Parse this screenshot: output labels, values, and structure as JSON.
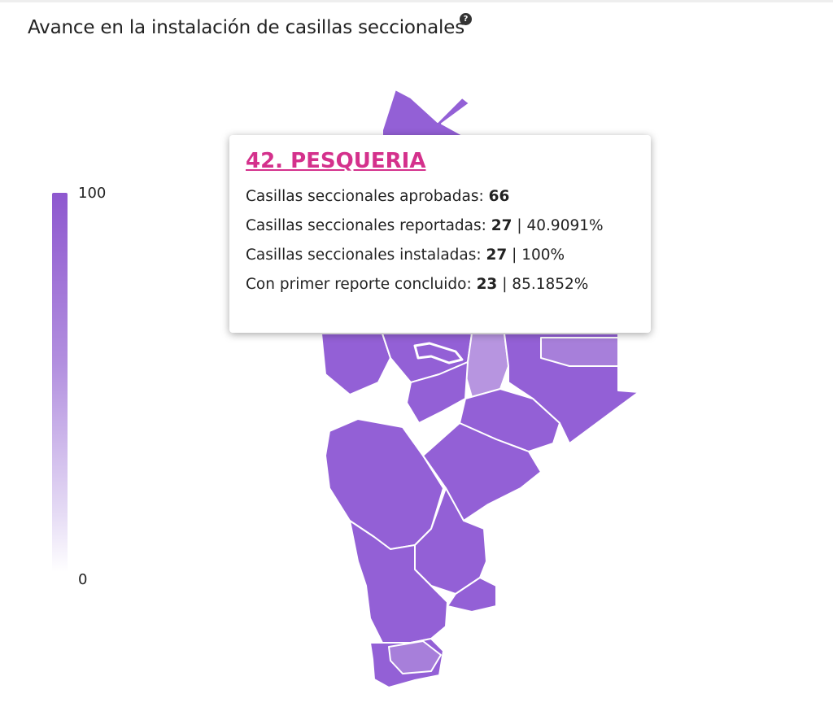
{
  "title": "Avance en la instalación de casillas seccionales",
  "help_icon": {
    "name": "help-icon",
    "glyph": "?"
  },
  "legend": {
    "max": "100",
    "min": "0",
    "color_high": "#8e58cf",
    "color_low": "#ffffff"
  },
  "map": {
    "fill_default": "#9360d6",
    "fill_light": "#b795e0",
    "stroke": "#ffffff"
  },
  "tooltip": {
    "title": "42. PESQUERIA",
    "title_color": "#d4318c",
    "rows": [
      {
        "label": "Casillas seccionales aprobadas: ",
        "value": "66",
        "extra": ""
      },
      {
        "label": "Casillas seccionales reportadas: ",
        "value": "27",
        "extra": " | 40.9091%"
      },
      {
        "label": "Casillas seccionales instaladas: ",
        "value": "27",
        "extra": " | 100%"
      },
      {
        "label": "Con primer reporte concluido: ",
        "value": "23",
        "extra": " | 85.1852%"
      }
    ]
  }
}
